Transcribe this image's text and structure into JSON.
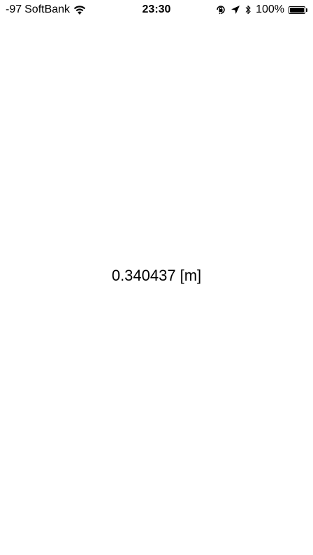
{
  "status_bar": {
    "signal": "-97",
    "carrier": "SoftBank",
    "time": "23:30",
    "battery_percent": "100%",
    "battery_level": 1.0,
    "icons": {
      "wifi": "wifi-icon",
      "orientation_lock": "orientation-lock-icon",
      "location": "location-arrow-icon",
      "bluetooth": "bluetooth-icon",
      "battery": "battery-icon"
    }
  },
  "main": {
    "distance_value": "0.340437",
    "distance_unit": "[m]"
  }
}
